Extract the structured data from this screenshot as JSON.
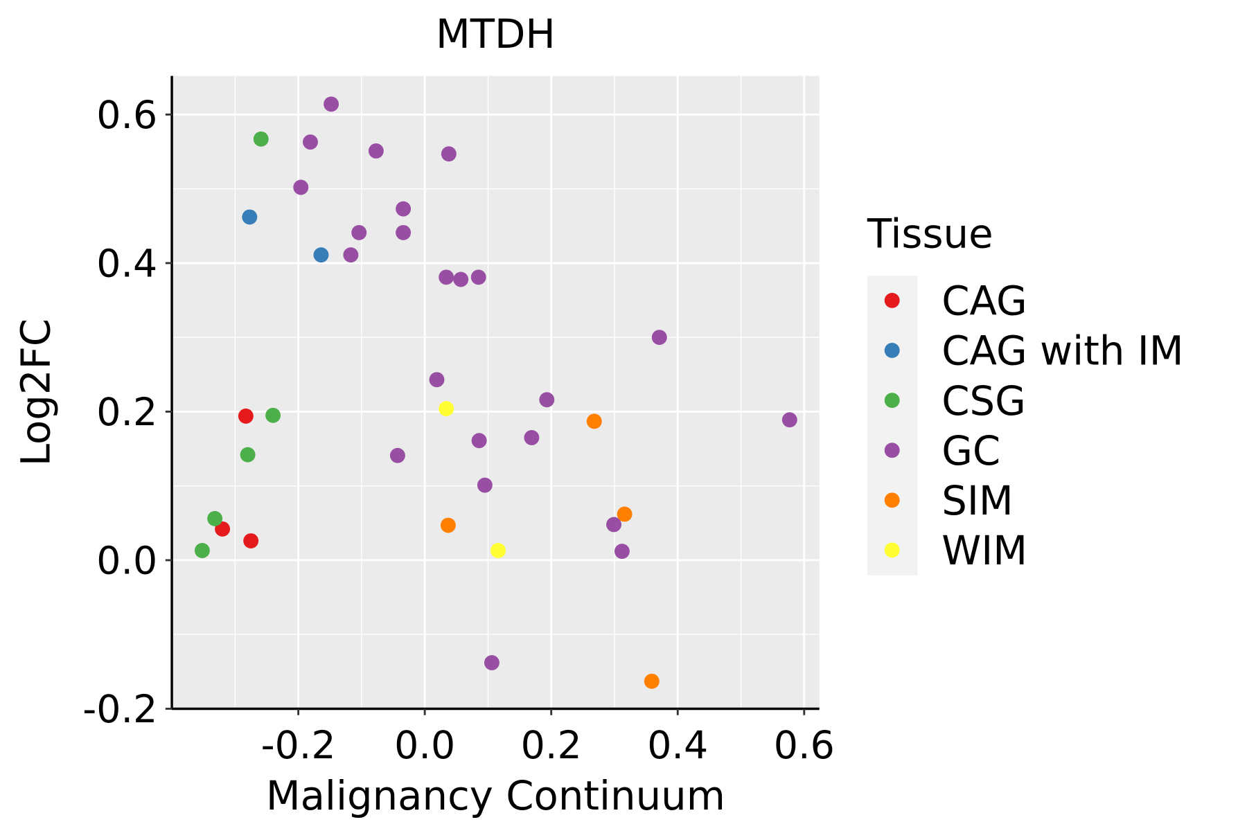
{
  "chart_data": {
    "type": "scatter",
    "title": "MTDH",
    "xlabel": "Malignancy Continuum",
    "ylabel": "Log2FC",
    "xlim": [
      -0.4,
      0.624
    ],
    "ylim": [
      -0.2,
      0.652
    ],
    "xticks": [
      -0.2,
      0.0,
      0.2,
      0.4,
      0.6
    ],
    "xtick_labels": [
      "-0.2",
      "0.0",
      "0.2",
      "0.4",
      "0.6"
    ],
    "yticks": [
      -0.2,
      0.0,
      0.2,
      0.4,
      0.6
    ],
    "ytick_labels": [
      "-0.2",
      "0.0",
      "0.2",
      "0.4",
      "0.6"
    ],
    "grid": true,
    "legend": {
      "title": "Tissue",
      "placement": "right"
    },
    "series": [
      {
        "name": "CAG",
        "color": "#E41A1C",
        "points": [
          [
            -0.283,
            0.194
          ],
          [
            -0.32,
            0.042
          ],
          [
            -0.275,
            0.026
          ]
        ]
      },
      {
        "name": "CAG with IM",
        "color": "#377EB8",
        "points": [
          [
            -0.277,
            0.462
          ],
          [
            -0.164,
            0.411
          ]
        ]
      },
      {
        "name": "CSG",
        "color": "#4DAF4A",
        "points": [
          [
            -0.259,
            0.567
          ],
          [
            -0.24,
            0.195
          ],
          [
            -0.28,
            0.142
          ],
          [
            -0.332,
            0.056
          ],
          [
            -0.352,
            0.013
          ]
        ]
      },
      {
        "name": "GC",
        "color": "#984EA3",
        "points": [
          [
            -0.148,
            0.614
          ],
          [
            -0.181,
            0.563
          ],
          [
            -0.077,
            0.551
          ],
          [
            0.038,
            0.547
          ],
          [
            -0.196,
            0.502
          ],
          [
            -0.034,
            0.473
          ],
          [
            -0.104,
            0.441
          ],
          [
            -0.034,
            0.441
          ],
          [
            -0.117,
            0.411
          ],
          [
            0.034,
            0.381
          ],
          [
            0.057,
            0.378
          ],
          [
            0.085,
            0.381
          ],
          [
            0.371,
            0.3
          ],
          [
            0.019,
            0.243
          ],
          [
            0.193,
            0.216
          ],
          [
            0.577,
            0.189
          ],
          [
            0.086,
            0.161
          ],
          [
            0.169,
            0.165
          ],
          [
            -0.043,
            0.141
          ],
          [
            0.095,
            0.101
          ],
          [
            0.299,
            0.048
          ],
          [
            0.312,
            0.012
          ],
          [
            0.106,
            -0.138
          ]
        ]
      },
      {
        "name": "SIM",
        "color": "#FF7F00",
        "points": [
          [
            0.268,
            0.187
          ],
          [
            0.316,
            0.062
          ],
          [
            0.037,
            0.047
          ],
          [
            0.359,
            -0.163
          ]
        ]
      },
      {
        "name": "WIM",
        "color": "#FFFF33",
        "points": [
          [
            0.034,
            0.204
          ],
          [
            0.116,
            0.013
          ]
        ]
      }
    ]
  }
}
